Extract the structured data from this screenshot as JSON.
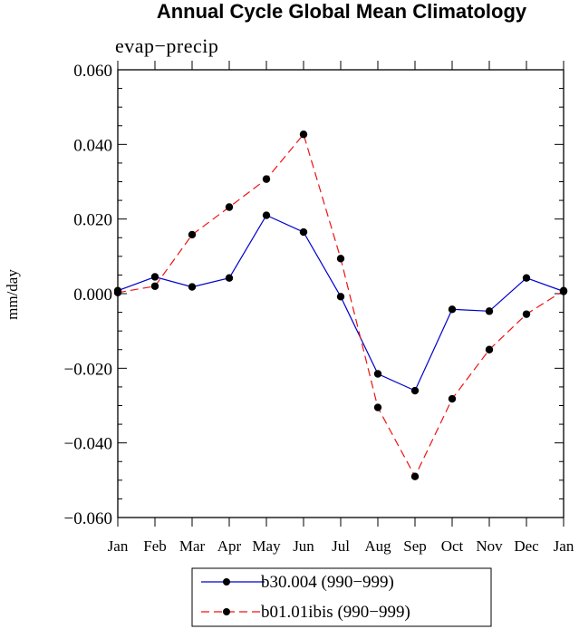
{
  "chart_data": {
    "type": "line",
    "title": "Annual Cycle Global Mean Climatology",
    "subtitle": "evap−precip",
    "xlabel": "",
    "ylabel": "mm/day",
    "categories": [
      "Jan",
      "Feb",
      "Mar",
      "Apr",
      "May",
      "Jun",
      "Jul",
      "Aug",
      "Sep",
      "Oct",
      "Nov",
      "Dec",
      "Jan"
    ],
    "ylim": [
      -0.06,
      0.06
    ],
    "yticks": [
      -0.06,
      -0.04,
      -0.02,
      0.0,
      0.02,
      0.04,
      0.06
    ],
    "ytick_labels": [
      "−0.060",
      "−0.040",
      "−0.020",
      "0.000",
      "0.020",
      "0.040",
      "0.060"
    ],
    "series": [
      {
        "name": "b30.004 (990−999)",
        "color": "#0000cc",
        "dash": "solid",
        "values": [
          0.0008,
          0.0045,
          0.0018,
          0.0042,
          0.021,
          0.0165,
          -0.0008,
          -0.0215,
          -0.026,
          -0.0042,
          -0.0047,
          0.0042,
          0.0006
        ]
      },
      {
        "name": "b01.01ibis (990−999)",
        "color": "#ee1111",
        "dash": "dashed",
        "values": [
          0.0003,
          0.002,
          0.0158,
          0.0232,
          0.0307,
          0.0427,
          0.0094,
          -0.0305,
          -0.049,
          -0.0282,
          -0.015,
          -0.0055,
          0.0008
        ]
      }
    ],
    "grid": false,
    "legend_position": "bottom-center"
  }
}
